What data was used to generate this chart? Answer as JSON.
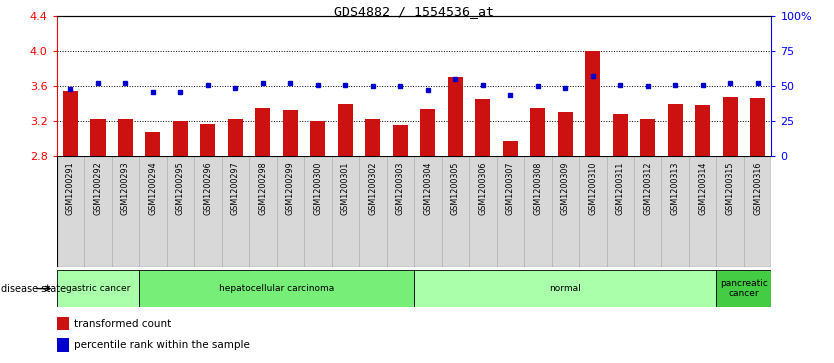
{
  "title": "GDS4882 / 1554536_at",
  "samples": [
    "GSM1200291",
    "GSM1200292",
    "GSM1200293",
    "GSM1200294",
    "GSM1200295",
    "GSM1200296",
    "GSM1200297",
    "GSM1200298",
    "GSM1200299",
    "GSM1200300",
    "GSM1200301",
    "GSM1200302",
    "GSM1200303",
    "GSM1200304",
    "GSM1200305",
    "GSM1200306",
    "GSM1200307",
    "GSM1200308",
    "GSM1200309",
    "GSM1200310",
    "GSM1200311",
    "GSM1200312",
    "GSM1200313",
    "GSM1200314",
    "GSM1200315",
    "GSM1200316"
  ],
  "bar_values": [
    3.55,
    3.23,
    3.23,
    3.08,
    3.2,
    3.17,
    3.22,
    3.35,
    3.33,
    3.2,
    3.4,
    3.22,
    3.16,
    3.34,
    3.7,
    3.45,
    2.97,
    3.35,
    3.3,
    4.0,
    3.28,
    3.22,
    3.4,
    3.38,
    3.48,
    3.47
  ],
  "percentile_values_pct": [
    48,
    52,
    52,
    46,
    46,
    51,
    49,
    52,
    52,
    51,
    51,
    50,
    50,
    47,
    55,
    51,
    44,
    50,
    49,
    57,
    51,
    50,
    51,
    51,
    52,
    52
  ],
  "ylim_left": [
    2.8,
    4.4
  ],
  "ylim_right": [
    0,
    100
  ],
  "bar_color": "#cc1111",
  "dot_color": "#0000cc",
  "grid_levels": [
    3.2,
    3.6,
    4.0
  ],
  "disease_groups": [
    {
      "label": "gastric cancer",
      "start": 0,
      "end": 3,
      "color": "#aaffaa"
    },
    {
      "label": "hepatocellular carcinoma",
      "start": 3,
      "end": 13,
      "color": "#77ee77"
    },
    {
      "label": "normal",
      "start": 13,
      "end": 24,
      "color": "#aaffaa"
    },
    {
      "label": "pancreatic\ncancer",
      "start": 24,
      "end": 26,
      "color": "#44cc44"
    }
  ],
  "right_tick_vals": [
    0,
    25,
    50,
    75,
    100
  ],
  "right_tick_labels": [
    "0",
    "25",
    "50",
    "75",
    "100%"
  ],
  "left_tick_vals": [
    2.8,
    3.2,
    3.6,
    4.0,
    4.4
  ],
  "left_tick_labels": [
    "2.8",
    "3.2",
    "3.6",
    "4.0",
    "4.4"
  ],
  "sample_cell_color": "#d8d8d8",
  "sample_cell_border": "#aaaaaa"
}
